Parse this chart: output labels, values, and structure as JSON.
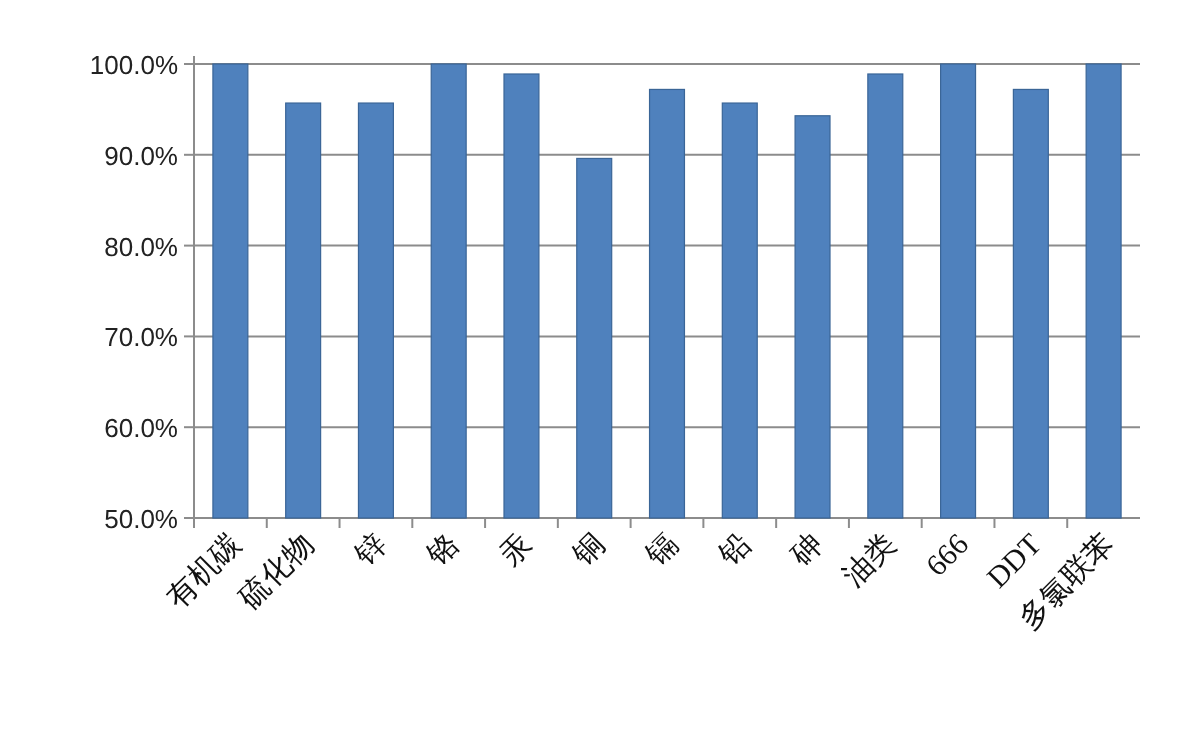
{
  "chart_data": {
    "type": "bar",
    "categories": [
      "有机碳",
      "硫化物",
      "锌",
      "铬",
      "汞",
      "铜",
      "镉",
      "铅",
      "砷",
      "油类",
      "666",
      "DDT",
      "多氯联苯"
    ],
    "values": [
      100,
      95.7,
      95.7,
      100,
      98.9,
      89.6,
      97.2,
      95.7,
      94.3,
      98.9,
      100,
      97.2,
      100
    ],
    "color": "#4f81bd",
    "ylim": [
      50,
      100
    ],
    "yticks": [
      {
        "value": 50,
        "label": "50.0%"
      },
      {
        "value": 60,
        "label": "60.0%"
      },
      {
        "value": 70,
        "label": "70.0%"
      },
      {
        "value": 80,
        "label": "80.0%"
      },
      {
        "value": 90,
        "label": "90.0%"
      },
      {
        "value": 100,
        "label": "100.0%"
      }
    ],
    "grid": "y"
  }
}
